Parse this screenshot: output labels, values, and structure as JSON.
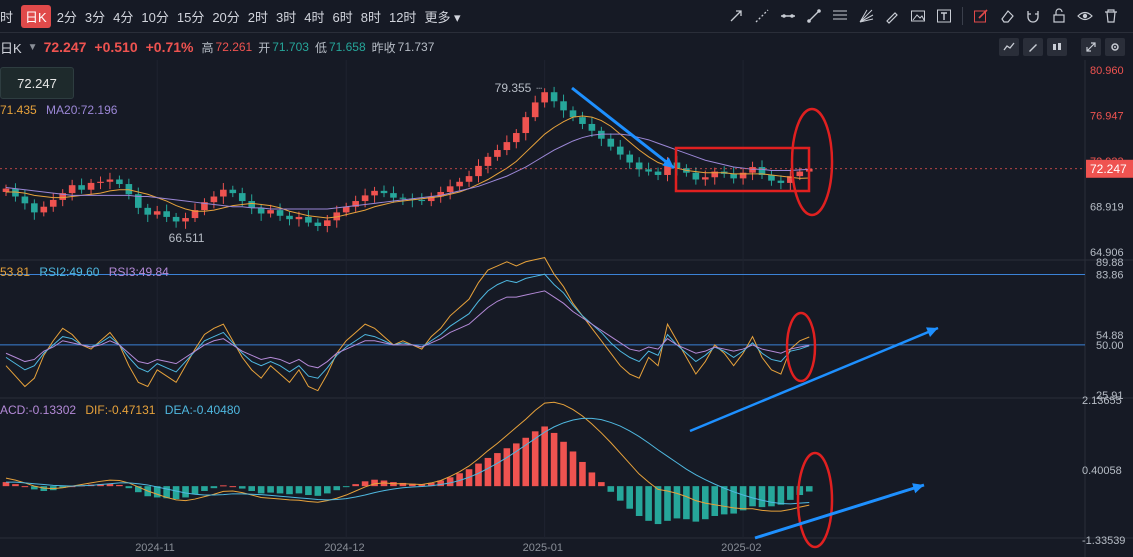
{
  "toolbar": {
    "timeframes": [
      "时",
      "日K",
      "2分",
      "3分",
      "4分",
      "10分",
      "15分",
      "20分",
      "2时",
      "3时",
      "4时",
      "6时",
      "8时",
      "12时",
      "更多"
    ],
    "active_index": 1,
    "tools": [
      "arrow-up-right-icon",
      "ray-icon",
      "horizontal-line-icon",
      "arrow-line-icon",
      "fib-icon",
      "fan-icon",
      "brush-icon",
      "image-icon",
      "text-icon",
      "edit-icon",
      "eraser-icon",
      "magnet-icon",
      "lock-icon",
      "eye-icon",
      "trash-icon"
    ]
  },
  "info": {
    "period": "日K",
    "price": "72.247",
    "change": "+0.510",
    "change_pct": "+0.71%",
    "high_label": "高",
    "high": "72.261",
    "open_label": "开",
    "open": "71.703",
    "low_label": "低",
    "low": "71.658",
    "prev_label": "昨收",
    "prev": "71.737"
  },
  "price_tag": "72.247",
  "ma_legend": {
    "ma10": "71.435",
    "ma20_label": "MA20:",
    "ma20": "72.196"
  },
  "rsi_legend": {
    "rsi1": "53.81",
    "rsi2": "RSI2:49.60",
    "rsi3": "RSI3:49.84"
  },
  "macd_legend": {
    "macd": "ACD:-0.13302",
    "dif": "DIF:-0.47131",
    "dea": "DEA:-0.40480"
  },
  "colors": {
    "bg": "#161a25",
    "up": "#ef5350",
    "down": "#26a69a",
    "ma10": "#e7a23b",
    "ma20": "#9b87d6",
    "annotation": "#e02020",
    "arrow": "#1e90ff"
  },
  "chart_data": [
    {
      "type": "candlestick",
      "title": "",
      "ylim": [
        64.906,
        80.96
      ],
      "y_ticks": [
        "80.960",
        "76.947",
        "72.933",
        "68.919",
        "64.906"
      ],
      "last_price": "72.247",
      "annotations": [
        "79.355",
        "66.511"
      ],
      "x_ticks": [
        "2024-11",
        "2024-12",
        "2025-01",
        "2025-02"
      ],
      "close": [
        70.5,
        69.8,
        69.2,
        68.4,
        68.9,
        69.5,
        70.1,
        70.8,
        70.4,
        71.0,
        71.1,
        71.3,
        70.9,
        70.0,
        68.8,
        68.2,
        68.5,
        68.0,
        67.6,
        67.9,
        68.6,
        69.3,
        69.8,
        70.4,
        70.1,
        69.4,
        68.8,
        68.3,
        68.6,
        68.1,
        67.8,
        68.0,
        67.5,
        67.2,
        67.7,
        68.4,
        68.9,
        69.4,
        69.9,
        70.3,
        70.1,
        69.7,
        69.6,
        69.5,
        69.4,
        69.8,
        70.2,
        70.7,
        71.1,
        71.6,
        72.5,
        73.3,
        73.9,
        74.6,
        75.4,
        76.8,
        78.1,
        79.0,
        78.2,
        77.4,
        76.8,
        76.2,
        75.6,
        74.9,
        74.2,
        73.5,
        72.8,
        72.2,
        72.0,
        71.7,
        72.8,
        72.3,
        71.9,
        71.3,
        71.5,
        72.0,
        71.8,
        71.4,
        71.9,
        72.4,
        71.7,
        71.2,
        71.0,
        71.6,
        72.0,
        72.25
      ],
      "ma10": [
        70.2,
        70.2,
        70.1,
        69.9,
        69.8,
        69.7,
        69.7,
        69.8,
        69.9,
        70.0,
        70.1,
        70.3,
        70.4,
        70.4,
        70.2,
        70.0,
        69.7,
        69.4,
        69.0,
        68.7,
        68.5,
        68.5,
        68.6,
        68.8,
        69.0,
        69.1,
        69.2,
        69.1,
        69.0,
        68.8,
        68.5,
        68.3,
        68.1,
        68.0,
        67.9,
        68.0,
        68.2,
        68.4,
        68.6,
        68.9,
        69.1,
        69.3,
        69.4,
        69.5,
        69.6,
        69.7,
        69.8,
        70.0,
        70.2,
        70.5,
        70.9,
        71.3,
        71.8,
        72.3,
        72.9,
        73.7,
        74.5,
        75.3,
        75.9,
        76.4,
        76.8,
        76.9,
        76.8,
        76.5,
        76.0,
        75.3,
        74.6,
        73.9,
        73.3,
        72.8,
        72.5,
        72.3,
        72.1,
        72.0,
        71.9,
        71.9,
        71.9,
        71.8,
        71.8,
        71.8,
        71.8,
        71.7,
        71.6,
        71.5,
        71.4,
        71.435
      ],
      "ma20": [
        70.6,
        70.5,
        70.4,
        70.3,
        70.2,
        70.1,
        70.0,
        69.9,
        69.9,
        69.9,
        69.9,
        69.9,
        69.9,
        69.9,
        69.8,
        69.8,
        69.7,
        69.6,
        69.5,
        69.4,
        69.3,
        69.2,
        69.1,
        69.0,
        68.9,
        68.9,
        68.8,
        68.8,
        68.7,
        68.7,
        68.7,
        68.7,
        68.7,
        68.7,
        68.7,
        68.8,
        68.9,
        69.0,
        69.1,
        69.2,
        69.3,
        69.4,
        69.5,
        69.6,
        69.7,
        69.8,
        69.9,
        70.1,
        70.3,
        70.5,
        70.7,
        71.0,
        71.3,
        71.6,
        72.0,
        72.4,
        72.9,
        73.4,
        73.9,
        74.3,
        74.7,
        75.0,
        75.2,
        75.3,
        75.3,
        75.3,
        75.2,
        75.0,
        74.8,
        74.5,
        74.2,
        73.9,
        73.6,
        73.3,
        73.0,
        72.8,
        72.6,
        72.4,
        72.3,
        72.2,
        72.2,
        72.1,
        72.1,
        72.1,
        72.15,
        72.196
      ]
    },
    {
      "type": "line",
      "title": "RSI",
      "ylim": [
        25.91,
        89.88
      ],
      "y_ticks": [
        "89.88",
        "83.86",
        "54.88",
        "50.00",
        "25.91"
      ],
      "series": [
        {
          "name": "RSI1",
          "values": [
            40,
            35,
            30,
            34,
            45,
            52,
            58,
            55,
            50,
            48,
            52,
            56,
            50,
            40,
            32,
            30,
            38,
            35,
            32,
            40,
            48,
            55,
            58,
            60,
            52,
            44,
            38,
            34,
            40,
            36,
            32,
            38,
            30,
            28,
            36,
            46,
            52,
            56,
            60,
            58,
            54,
            50,
            52,
            50,
            48,
            54,
            58,
            64,
            68,
            72,
            80,
            86,
            88,
            90,
            88,
            90,
            91,
            92,
            84,
            78,
            70,
            64,
            58,
            52,
            46,
            40,
            36,
            34,
            44,
            40,
            60,
            52,
            44,
            36,
            42,
            50,
            46,
            40,
            46,
            54,
            44,
            38,
            36,
            48,
            52,
            53.81
          ]
        },
        {
          "name": "RSI2",
          "values": [
            44,
            41,
            38,
            40,
            46,
            50,
            54,
            53,
            50,
            49,
            51,
            54,
            50,
            44,
            39,
            37,
            41,
            39,
            37,
            42,
            47,
            52,
            54,
            56,
            51,
            46,
            42,
            40,
            42,
            40,
            37,
            40,
            35,
            34,
            39,
            45,
            49,
            52,
            55,
            54,
            52,
            50,
            51,
            50,
            49,
            52,
            55,
            59,
            62,
            65,
            71,
            76,
            79,
            81,
            80,
            82,
            83,
            84,
            79,
            75,
            69,
            64,
            60,
            56,
            51,
            47,
            44,
            42,
            47,
            45,
            55,
            50,
            46,
            42,
            45,
            49,
            47,
            44,
            47,
            51,
            46,
            43,
            42,
            47,
            48,
            49.6
          ]
        },
        {
          "name": "RSI3",
          "values": [
            46,
            44,
            42,
            43,
            47,
            49,
            52,
            51,
            50,
            49,
            50,
            52,
            50,
            46,
            42,
            41,
            43,
            42,
            41,
            44,
            47,
            50,
            52,
            53,
            50,
            47,
            45,
            43,
            44,
            43,
            41,
            43,
            40,
            39,
            42,
            46,
            48,
            50,
            52,
            52,
            51,
            50,
            50,
            50,
            49,
            51,
            53,
            56,
            58,
            60,
            64,
            68,
            71,
            73,
            73,
            74,
            75,
            76,
            73,
            70,
            66,
            63,
            60,
            57,
            54,
            51,
            48,
            47,
            49,
            48,
            53,
            50,
            48,
            46,
            47,
            49,
            48,
            47,
            48,
            50,
            48,
            47,
            46,
            48,
            49,
            49.84
          ]
        }
      ]
    },
    {
      "type": "bar",
      "title": "MACD",
      "ylim": [
        -1.33539,
        2.13655
      ],
      "y_ticks": [
        "2.13655",
        "0.40058",
        "-1.33539"
      ],
      "series": [
        {
          "name": "MACD",
          "values": [
            0.1,
            0.05,
            0.0,
            -0.08,
            -0.12,
            -0.1,
            -0.04,
            0.0,
            0.02,
            0.04,
            0.05,
            0.06,
            0.03,
            -0.05,
            -0.15,
            -0.25,
            -0.28,
            -0.3,
            -0.32,
            -0.28,
            -0.2,
            -0.12,
            -0.05,
            0.02,
            0.0,
            -0.06,
            -0.12,
            -0.18,
            -0.16,
            -0.18,
            -0.2,
            -0.18,
            -0.22,
            -0.24,
            -0.18,
            -0.1,
            -0.02,
            0.05,
            0.12,
            0.16,
            0.14,
            0.1,
            0.08,
            0.06,
            0.04,
            0.08,
            0.14,
            0.22,
            0.32,
            0.42,
            0.56,
            0.7,
            0.82,
            0.94,
            1.06,
            1.2,
            1.36,
            1.48,
            1.32,
            1.1,
            0.86,
            0.6,
            0.34,
            0.1,
            -0.14,
            -0.36,
            -0.56,
            -0.74,
            -0.86,
            -0.94,
            -0.86,
            -0.8,
            -0.82,
            -0.88,
            -0.82,
            -0.74,
            -0.7,
            -0.68,
            -0.6,
            -0.5,
            -0.52,
            -0.5,
            -0.46,
            -0.34,
            -0.22,
            -0.13302
          ]
        },
        {
          "name": "DIF",
          "values": [
            0.2,
            0.15,
            0.08,
            0.0,
            -0.05,
            -0.06,
            -0.04,
            0.0,
            0.04,
            0.08,
            0.12,
            0.15,
            0.14,
            0.08,
            -0.02,
            -0.12,
            -0.2,
            -0.28,
            -0.34,
            -0.36,
            -0.32,
            -0.26,
            -0.2,
            -0.13,
            -0.12,
            -0.16,
            -0.22,
            -0.28,
            -0.3,
            -0.32,
            -0.34,
            -0.35,
            -0.38,
            -0.4,
            -0.36,
            -0.3,
            -0.22,
            -0.12,
            -0.02,
            0.06,
            0.08,
            0.06,
            0.06,
            0.05,
            0.04,
            0.08,
            0.14,
            0.24,
            0.36,
            0.5,
            0.68,
            0.88,
            1.06,
            1.26,
            1.46,
            1.66,
            1.88,
            2.06,
            2.08,
            2.02,
            1.9,
            1.74,
            1.54,
            1.32,
            1.08,
            0.82,
            0.56,
            0.3,
            0.1,
            -0.08,
            -0.12,
            -0.18,
            -0.26,
            -0.36,
            -0.42,
            -0.46,
            -0.5,
            -0.54,
            -0.56,
            -0.56,
            -0.6,
            -0.62,
            -0.62,
            -0.58,
            -0.52,
            -0.47131
          ]
        },
        {
          "name": "DEA",
          "values": [
            0.1,
            0.1,
            0.08,
            0.06,
            0.04,
            0.02,
            0.01,
            0.0,
            0.01,
            0.02,
            0.04,
            0.06,
            0.08,
            0.08,
            0.06,
            0.03,
            -0.02,
            -0.07,
            -0.12,
            -0.17,
            -0.2,
            -0.22,
            -0.22,
            -0.21,
            -0.19,
            -0.19,
            -0.2,
            -0.21,
            -0.23,
            -0.25,
            -0.27,
            -0.29,
            -0.31,
            -0.33,
            -0.34,
            -0.33,
            -0.31,
            -0.27,
            -0.22,
            -0.16,
            -0.11,
            -0.07,
            -0.04,
            -0.02,
            -0.01,
            0.01,
            0.04,
            0.08,
            0.14,
            0.22,
            0.32,
            0.44,
            0.57,
            0.71,
            0.86,
            1.02,
            1.18,
            1.34,
            1.47,
            1.57,
            1.64,
            1.68,
            1.68,
            1.65,
            1.58,
            1.49,
            1.37,
            1.23,
            1.07,
            0.9,
            0.74,
            0.58,
            0.42,
            0.28,
            0.16,
            0.05,
            -0.05,
            -0.14,
            -0.22,
            -0.29,
            -0.35,
            -0.4,
            -0.43,
            -0.44,
            -0.42,
            -0.4048
          ]
        }
      ]
    }
  ]
}
